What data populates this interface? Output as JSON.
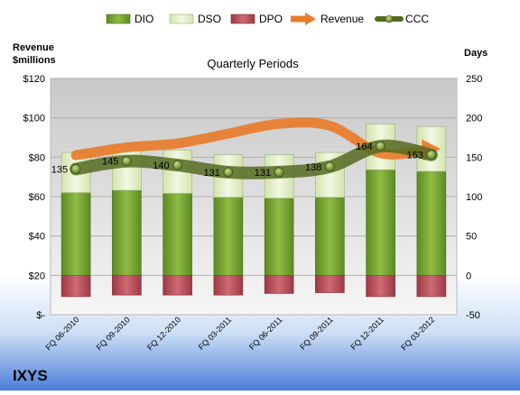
{
  "company": "IXYS",
  "chart_data": {
    "type": "bar",
    "title": "Quarterly Periods",
    "ylabel_left": "Revenue\n$millions",
    "ylabel_right": "Days",
    "categories": [
      "FQ 06-2010",
      "FQ 09-2010",
      "FQ 12-2010",
      "FQ 03-2011",
      "FQ 06-2011",
      "FQ 09-2011",
      "FQ 12-2011",
      "FQ 03-2012"
    ],
    "left_axis": {
      "min": 0,
      "max": 120,
      "step": 20,
      "tick_labels": [
        "$-",
        "$20",
        "$40",
        "$60",
        "$80",
        "$100",
        "$120"
      ]
    },
    "right_axis": {
      "min": -50,
      "max": 250,
      "step": 50,
      "tick_labels": [
        "-50",
        "0",
        "50",
        "100",
        "150",
        "200",
        "250"
      ]
    },
    "legend_position": "top",
    "series": [
      {
        "name": "DIO",
        "axis": "right",
        "kind": "stacked-bar",
        "color": "#78A22F",
        "values": [
          105,
          108,
          104,
          99,
          98,
          99,
          134,
          132
        ]
      },
      {
        "name": "DSO",
        "axis": "right",
        "kind": "stacked-bar",
        "color": "#E3F0C8",
        "values": [
          51,
          55,
          55,
          54,
          55,
          57,
          58,
          57
        ]
      },
      {
        "name": "DPO",
        "axis": "right",
        "kind": "negative-bar",
        "color": "#B94A55",
        "values": [
          -27,
          -25,
          -25,
          -25,
          -23,
          -22,
          -27,
          -27
        ]
      },
      {
        "name": "Revenue",
        "axis": "left",
        "kind": "arrow-line",
        "color": "#E87C2B",
        "values": [
          81,
          85,
          87,
          92,
          97,
          96,
          82,
          84
        ]
      },
      {
        "name": "CCC",
        "axis": "right",
        "kind": "line-markers",
        "color": "#556B22",
        "values": [
          135,
          145,
          140,
          131,
          131,
          138,
          164,
          153
        ],
        "labels": [
          "135",
          "145",
          "140",
          "131",
          "131",
          "138",
          "164",
          "153"
        ]
      }
    ]
  }
}
